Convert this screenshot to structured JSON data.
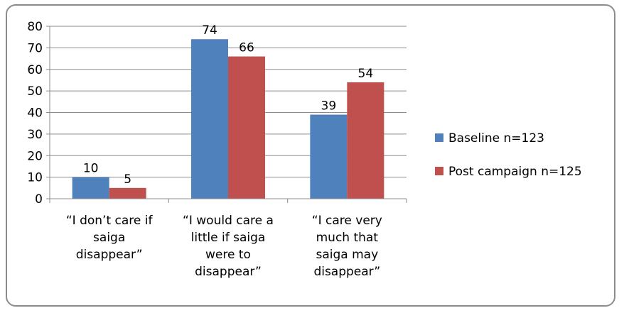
{
  "chart_data": {
    "type": "bar",
    "title": "",
    "xlabel": "",
    "ylabel": "",
    "ylim": [
      0,
      80
    ],
    "ytick_step": 10,
    "grid": true,
    "legend_position": "right",
    "categories": [
      [
        "“I don’t care if",
        "saiga",
        "disappear”"
      ],
      [
        "“I would care a",
        "little if saiga",
        "were to",
        "disappear”"
      ],
      [
        "“I care very",
        "much that",
        "saiga may",
        "disappear”"
      ]
    ],
    "series": [
      {
        "name": "Baseline n=123",
        "color": "#4f81bd",
        "values": [
          10,
          74,
          39
        ]
      },
      {
        "name": "Post campaign n=125",
        "color": "#c0504d",
        "values": [
          5,
          66,
          54
        ]
      }
    ]
  }
}
